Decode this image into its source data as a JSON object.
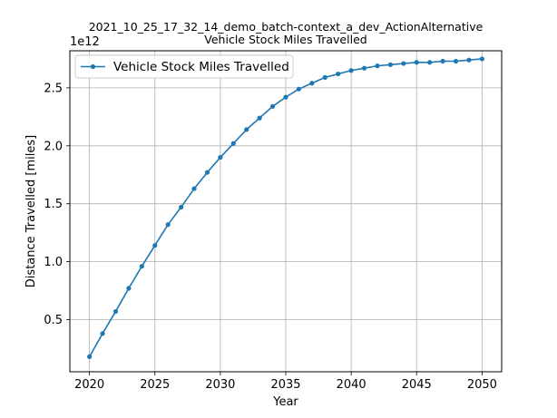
{
  "chart_data": {
    "type": "line",
    "title_lines": [
      "2021_10_25_17_32_14_demo_batch-context_a_dev_ActionAlternative",
      "Vehicle Stock Miles Travelled"
    ],
    "xlabel": "Year",
    "ylabel": "Distance Travelled [miles]",
    "y_offset_label": "1e12",
    "y_scale_factor": 1000000000000.0,
    "xlim": [
      2018.5,
      2051.5
    ],
    "ylim": [
      0.05,
      2.82
    ],
    "x_ticks": [
      2020,
      2025,
      2030,
      2035,
      2040,
      2045,
      2050
    ],
    "y_ticks": [
      0.5,
      1.0,
      1.5,
      2.0,
      2.5
    ],
    "y_tick_labels": [
      "0.5",
      "1.0",
      "1.5",
      "2.0",
      "2.5"
    ],
    "grid": true,
    "legend_position": "top-left",
    "color": "#1f77b4",
    "series": [
      {
        "name": "Vehicle Stock Miles Travelled",
        "x": [
          2020,
          2021,
          2022,
          2023,
          2024,
          2025,
          2026,
          2027,
          2028,
          2029,
          2030,
          2031,
          2032,
          2033,
          2034,
          2035,
          2036,
          2037,
          2038,
          2039,
          2040,
          2041,
          2042,
          2043,
          2044,
          2045,
          2046,
          2047,
          2048,
          2049,
          2050
        ],
        "y": [
          0.18,
          0.38,
          0.57,
          0.77,
          0.96,
          1.14,
          1.32,
          1.47,
          1.63,
          1.77,
          1.9,
          2.02,
          2.14,
          2.24,
          2.34,
          2.42,
          2.49,
          2.54,
          2.59,
          2.62,
          2.65,
          2.67,
          2.69,
          2.7,
          2.71,
          2.72,
          2.72,
          2.73,
          2.73,
          2.74,
          2.75
        ]
      }
    ]
  }
}
